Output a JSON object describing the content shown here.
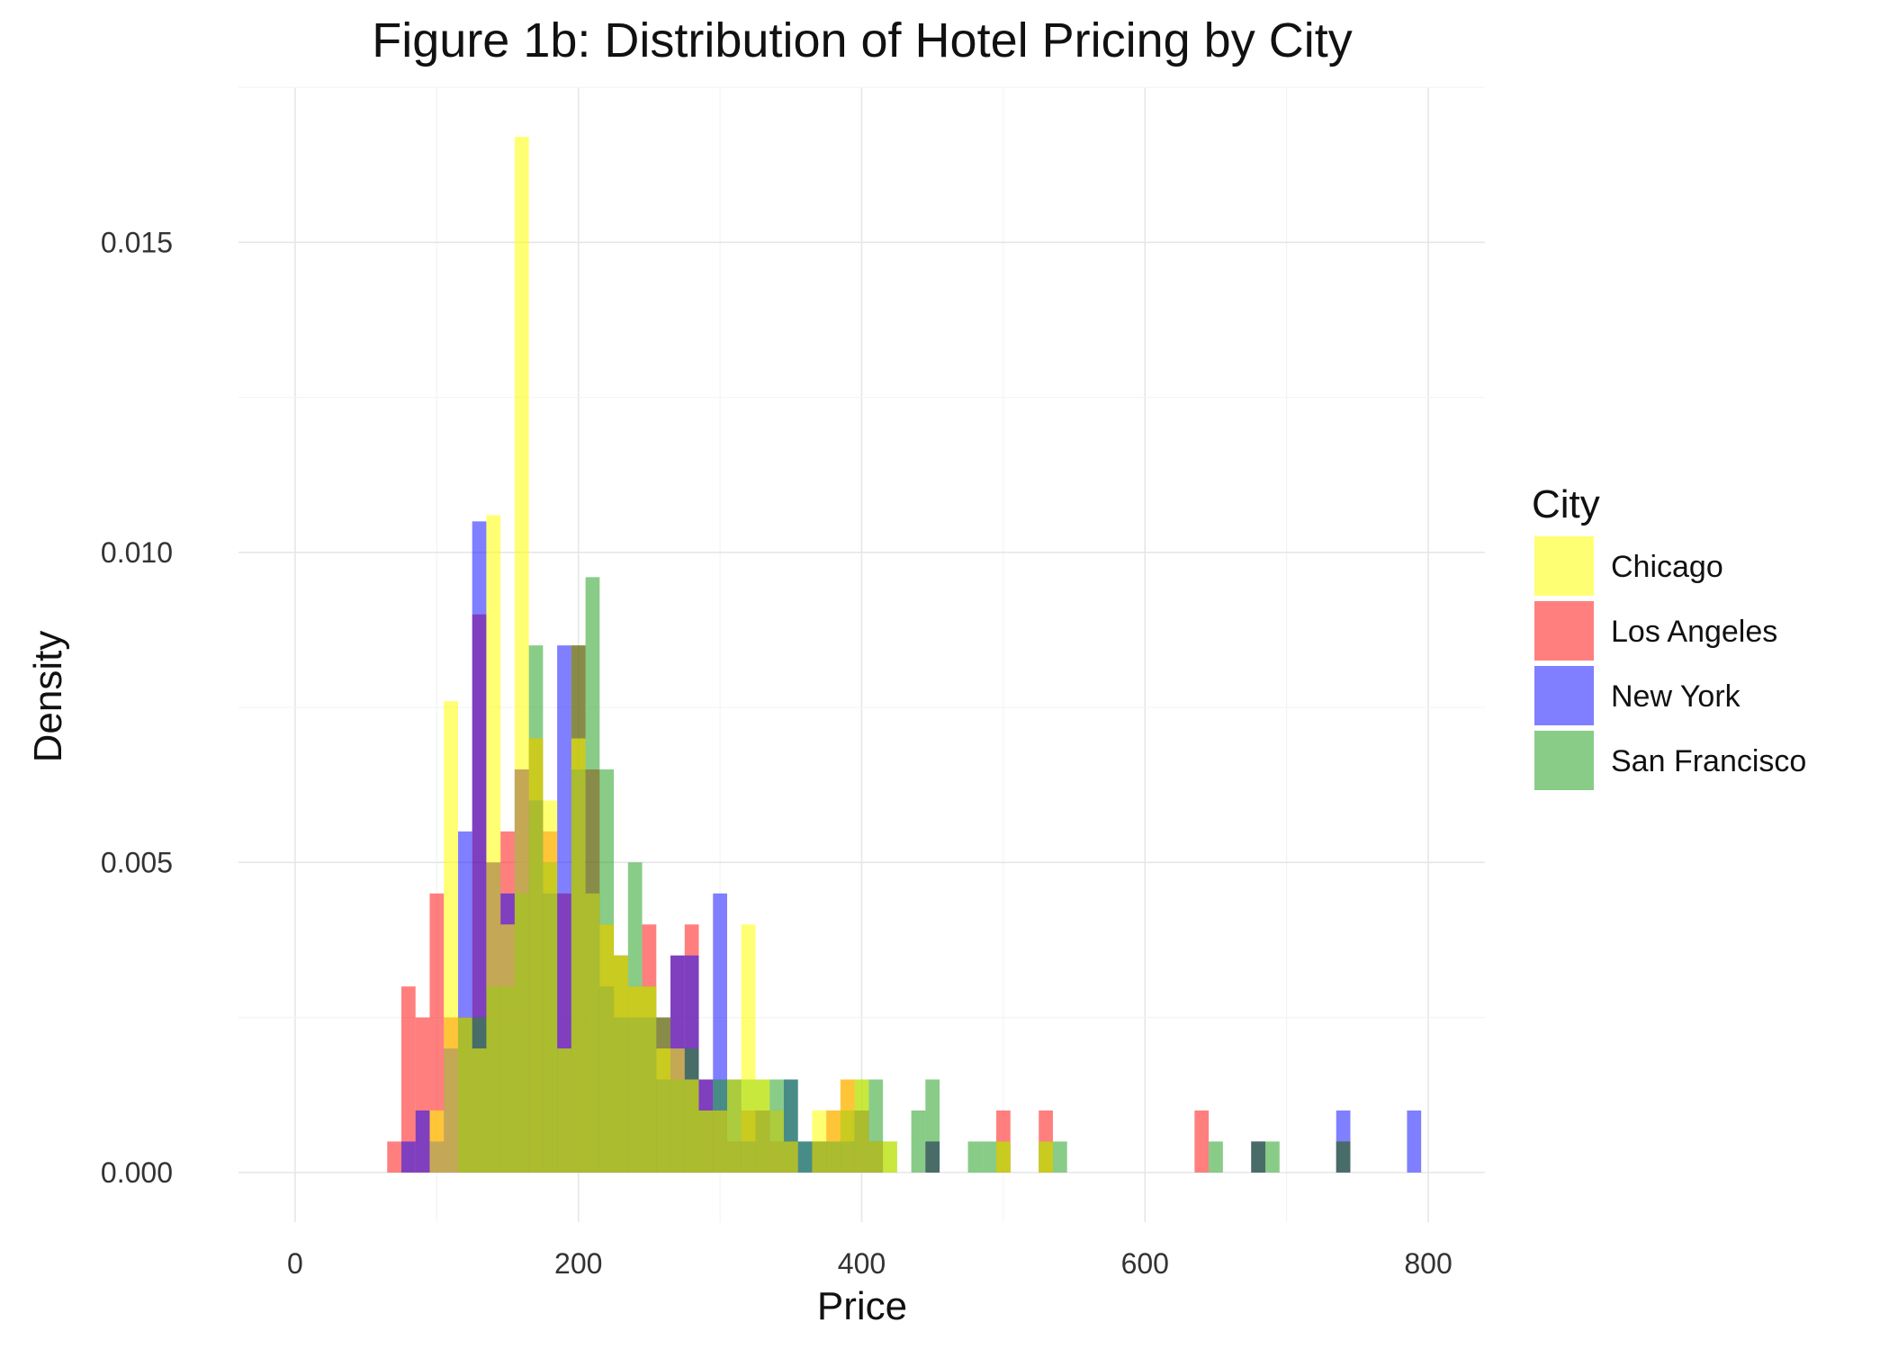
{
  "chart_data": {
    "type": "bar",
    "subtype": "overlaid-histogram",
    "title": "Figure 1b: Distribution of Hotel Pricing by City",
    "xlabel": "Price",
    "ylabel": "Density",
    "xlim": [
      -40,
      840
    ],
    "ylim": [
      -0.0008,
      0.0175
    ],
    "x_ticks": [
      0,
      200,
      400,
      600,
      800
    ],
    "x_tick_labels": [
      "0",
      "200",
      "400",
      "600",
      "800"
    ],
    "y_ticks": [
      0,
      0.005,
      0.01,
      0.015
    ],
    "y_tick_labels": [
      "0.000",
      "0.005",
      "0.010",
      "0.015"
    ],
    "bin_width": 10,
    "grid": true,
    "legend": {
      "title": "City",
      "position": "right"
    },
    "series": [
      {
        "name": "Los Angeles",
        "color": "#ff0000",
        "opacity": 0.5,
        "bins": [
          [
            70,
            0.0005
          ],
          [
            80,
            0.003
          ],
          [
            90,
            0.0025
          ],
          [
            100,
            0.0045
          ],
          [
            110,
            0.0025
          ],
          [
            120,
            0.0025
          ],
          [
            130,
            0.009
          ],
          [
            140,
            0.005
          ],
          [
            150,
            0.0055
          ],
          [
            160,
            0.0065
          ],
          [
            170,
            0.007
          ],
          [
            180,
            0.0055
          ],
          [
            190,
            0.0045
          ],
          [
            200,
            0.0085
          ],
          [
            210,
            0.0065
          ],
          [
            220,
            0.004
          ],
          [
            230,
            0.0035
          ],
          [
            240,
            0.003
          ],
          [
            250,
            0.004
          ],
          [
            260,
            0.0025
          ],
          [
            270,
            0.0035
          ],
          [
            280,
            0.004
          ],
          [
            290,
            0.0015
          ],
          [
            300,
            0.001
          ],
          [
            310,
            0.0005
          ],
          [
            320,
            0.001
          ],
          [
            330,
            0.001
          ],
          [
            340,
            0.0005
          ],
          [
            350,
            0.0005
          ],
          [
            370,
            0.0005
          ],
          [
            380,
            0.001
          ],
          [
            390,
            0.0015
          ],
          [
            400,
            0.001
          ],
          [
            410,
            0.0005
          ],
          [
            450,
            0.0005
          ],
          [
            500,
            0.001
          ],
          [
            530,
            0.001
          ],
          [
            640,
            0.001
          ],
          [
            680,
            0.0005
          ],
          [
            740,
            0.0005
          ]
        ]
      },
      {
        "name": "New York",
        "color": "#0000ff",
        "opacity": 0.5,
        "bins": [
          [
            80,
            0.0005
          ],
          [
            90,
            0.001
          ],
          [
            100,
            0.0005
          ],
          [
            110,
            0.002
          ],
          [
            120,
            0.0055
          ],
          [
            130,
            0.0105
          ],
          [
            140,
            0.005
          ],
          [
            150,
            0.0045
          ],
          [
            160,
            0.0065
          ],
          [
            170,
            0.006
          ],
          [
            180,
            0.0045
          ],
          [
            190,
            0.0085
          ],
          [
            200,
            0.0065
          ],
          [
            210,
            0.0045
          ],
          [
            220,
            0.003
          ],
          [
            230,
            0.0025
          ],
          [
            240,
            0.0025
          ],
          [
            250,
            0.0025
          ],
          [
            260,
            0.0015
          ],
          [
            270,
            0.0035
          ],
          [
            280,
            0.0035
          ],
          [
            290,
            0.0015
          ],
          [
            300,
            0.0045
          ],
          [
            310,
            0.0015
          ],
          [
            320,
            0.0005
          ],
          [
            330,
            0.001
          ],
          [
            340,
            0.001
          ],
          [
            350,
            0.0015
          ],
          [
            360,
            0.0005
          ],
          [
            370,
            0.0005
          ],
          [
            380,
            0.0005
          ],
          [
            390,
            0.0005
          ],
          [
            400,
            0.001
          ],
          [
            410,
            0.0005
          ],
          [
            450,
            0.0005
          ],
          [
            680,
            0.0005
          ],
          [
            740,
            0.001
          ],
          [
            790,
            0.001
          ]
        ]
      },
      {
        "name": "San Francisco",
        "color": "#119911",
        "opacity": 0.5,
        "bins": [
          [
            120,
            0.0025
          ],
          [
            130,
            0.0025
          ],
          [
            140,
            0.003
          ],
          [
            150,
            0.003
          ],
          [
            160,
            0.0045
          ],
          [
            170,
            0.0085
          ],
          [
            180,
            0.005
          ],
          [
            190,
            0.002
          ],
          [
            200,
            0.0085
          ],
          [
            210,
            0.0096
          ],
          [
            220,
            0.0065
          ],
          [
            230,
            0.0035
          ],
          [
            240,
            0.005
          ],
          [
            250,
            0.003
          ],
          [
            260,
            0.0025
          ],
          [
            270,
            0.0015
          ],
          [
            280,
            0.002
          ],
          [
            290,
            0.001
          ],
          [
            300,
            0.0015
          ],
          [
            310,
            0.0015
          ],
          [
            320,
            0.0015
          ],
          [
            330,
            0.0015
          ],
          [
            340,
            0.0015
          ],
          [
            350,
            0.0015
          ],
          [
            360,
            0.0005
          ],
          [
            370,
            0.0005
          ],
          [
            380,
            0.0005
          ],
          [
            390,
            0.001
          ],
          [
            400,
            0.0015
          ],
          [
            410,
            0.0015
          ],
          [
            420,
            0.0005
          ],
          [
            440,
            0.001
          ],
          [
            450,
            0.0015
          ],
          [
            480,
            0.0005
          ],
          [
            490,
            0.0005
          ],
          [
            500,
            0.0005
          ],
          [
            530,
            0.0005
          ],
          [
            540,
            0.0005
          ],
          [
            650,
            0.0005
          ],
          [
            680,
            0.0005
          ],
          [
            690,
            0.0005
          ],
          [
            740,
            0.0005
          ]
        ]
      },
      {
        "name": "Chicago",
        "color": "#ffff00",
        "opacity": 0.55,
        "bins": [
          [
            100,
            0.001
          ],
          [
            110,
            0.0076
          ],
          [
            120,
            0.0025
          ],
          [
            130,
            0.002
          ],
          [
            140,
            0.0106
          ],
          [
            150,
            0.004
          ],
          [
            160,
            0.0167
          ],
          [
            170,
            0.007
          ],
          [
            180,
            0.006
          ],
          [
            190,
            0.002
          ],
          [
            200,
            0.007
          ],
          [
            210,
            0.0045
          ],
          [
            220,
            0.004
          ],
          [
            230,
            0.0035
          ],
          [
            240,
            0.003
          ],
          [
            250,
            0.003
          ],
          [
            260,
            0.002
          ],
          [
            270,
            0.002
          ],
          [
            280,
            0.0015
          ],
          [
            290,
            0.001
          ],
          [
            300,
            0.001
          ],
          [
            310,
            0.0015
          ],
          [
            320,
            0.004
          ],
          [
            330,
            0.0015
          ],
          [
            340,
            0.001
          ],
          [
            350,
            0.0005
          ],
          [
            370,
            0.001
          ],
          [
            380,
            0.001
          ],
          [
            390,
            0.0015
          ],
          [
            400,
            0.0015
          ],
          [
            410,
            0.0005
          ],
          [
            420,
            0.0005
          ],
          [
            500,
            0.0005
          ],
          [
            530,
            0.0005
          ]
        ]
      }
    ],
    "legend_order": [
      "Chicago",
      "Los Angeles",
      "New York",
      "San Francisco"
    ]
  }
}
